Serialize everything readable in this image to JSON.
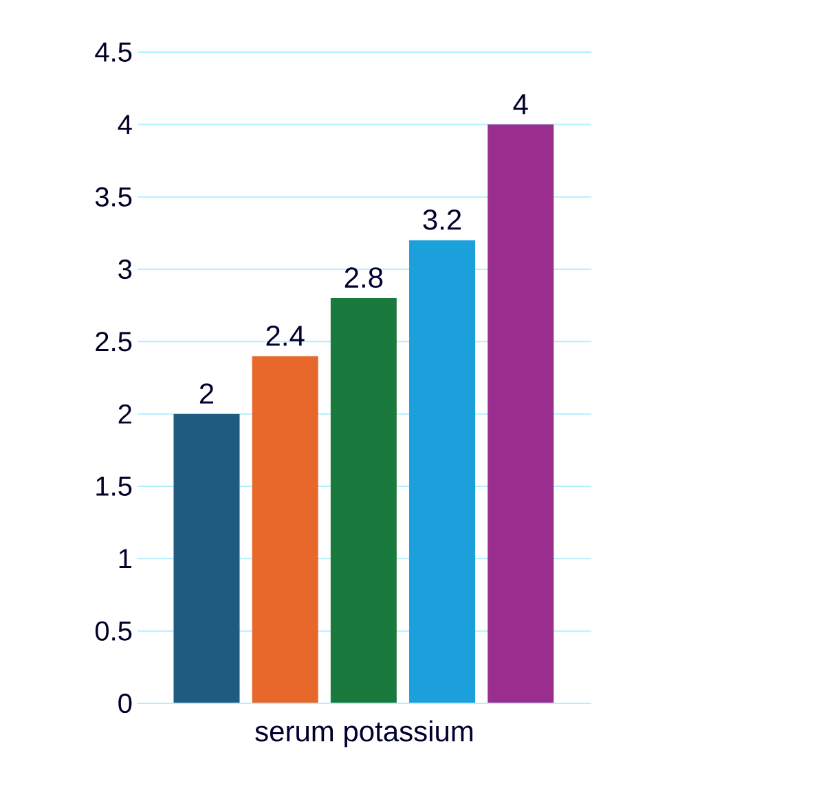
{
  "chart_data": {
    "type": "bar",
    "xlabel": "serum potassium",
    "categories": [
      null,
      null,
      null,
      null,
      null
    ],
    "values": [
      2,
      2.4,
      2.8,
      3.2,
      4
    ],
    "colors": [
      "#1f5a80",
      "#e8672a",
      "#1a7a3e",
      "#1ba0dc",
      "#9a2e8e"
    ],
    "ylim": [
      0,
      4.5
    ],
    "yticks": [
      0,
      0.5,
      1,
      1.5,
      2,
      2.5,
      3,
      3.5,
      4,
      4.5
    ],
    "grid": "y",
    "data_labels": true
  }
}
